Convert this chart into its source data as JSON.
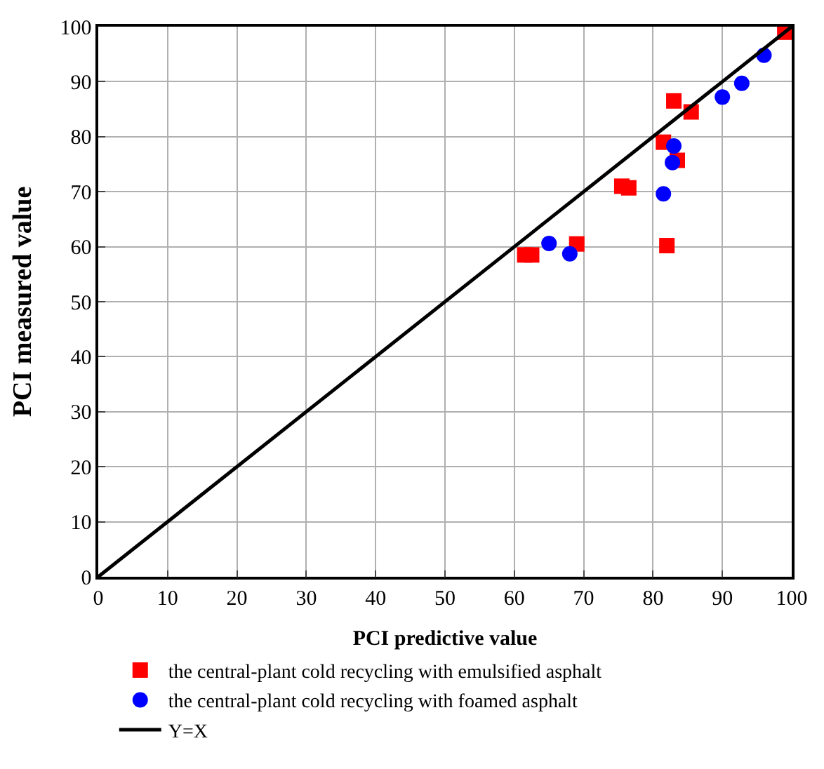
{
  "chart_data": {
    "type": "scatter",
    "xlabel": "PCI predictive value",
    "ylabel": "PCI measured value",
    "xlim": [
      0,
      100
    ],
    "ylim": [
      0,
      100
    ],
    "xticks": [
      0,
      10,
      20,
      30,
      40,
      50,
      60,
      70,
      80,
      90,
      100
    ],
    "yticks": [
      0,
      10,
      20,
      30,
      40,
      50,
      60,
      70,
      80,
      90,
      100
    ],
    "grid": true,
    "legend": "bottom",
    "series": [
      {
        "name": "the central-plant cold recycling with emulsified asphalt",
        "color": "#ff0000",
        "marker": "square",
        "x": [
          61.5,
          62.5,
          69,
          75.5,
          76.5,
          81.5,
          83.5,
          83,
          85.5,
          82,
          99
        ],
        "values": [
          58.5,
          58.5,
          60.5,
          71,
          70.7,
          79,
          75.7,
          86.5,
          84.5,
          60.2,
          99
        ]
      },
      {
        "name": "the central-plant cold recycling with foamed asphalt",
        "color": "#0000ff",
        "marker": "circle",
        "x": [
          65,
          68,
          81.5,
          83,
          82.8,
          90,
          92.8,
          96
        ],
        "values": [
          60.6,
          58.7,
          69.6,
          78.3,
          75.3,
          87.2,
          89.7,
          94.8
        ]
      },
      {
        "name": "Y=X",
        "color": "#000000",
        "type": "line",
        "line_style": "solid",
        "x": [
          0,
          100
        ],
        "values": [
          0,
          100
        ]
      }
    ]
  }
}
